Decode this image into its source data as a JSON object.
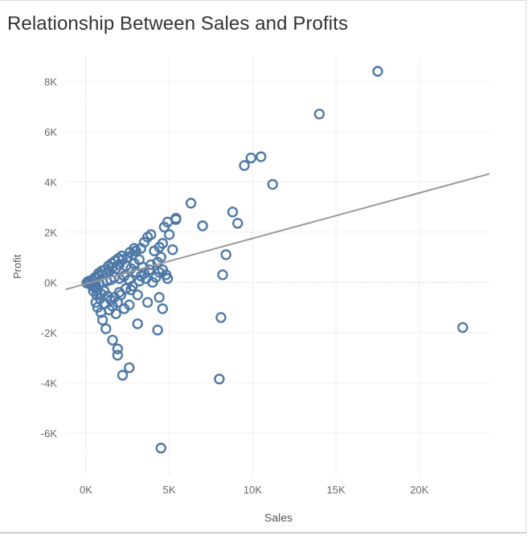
{
  "chart_data": {
    "type": "scatter",
    "title": "Relationship Between Sales and Profits",
    "xlabel": "Sales",
    "ylabel": "Profit",
    "xlim": [
      -1200,
      24200
    ],
    "ylim": [
      -7700,
      9000
    ],
    "x_ticks": [
      {
        "value": 0,
        "label": "0K"
      },
      {
        "value": 5000,
        "label": "5K"
      },
      {
        "value": 10000,
        "label": "10K"
      },
      {
        "value": 15000,
        "label": "15K"
      },
      {
        "value": 20000,
        "label": "20K"
      }
    ],
    "y_ticks": [
      {
        "value": -6000,
        "label": "-6K"
      },
      {
        "value": -4000,
        "label": "-4K"
      },
      {
        "value": -2000,
        "label": "-2K"
      },
      {
        "value": 0,
        "label": "0K"
      },
      {
        "value": 2000,
        "label": "2K"
      },
      {
        "value": 4000,
        "label": "4K"
      },
      {
        "value": 6000,
        "label": "6K"
      },
      {
        "value": 8000,
        "label": "8K"
      }
    ],
    "grid": true,
    "marker": "hollow-circle",
    "point_color": "#4e79a7",
    "trend_color": "#999999",
    "zero_line_color": "#bbbbbb",
    "trend_line": [
      {
        "x": -1200,
        "y": -280
      },
      {
        "x": 24200,
        "y": 4320
      }
    ],
    "points": [
      {
        "x": 17500,
        "y": 8400
      },
      {
        "x": 14000,
        "y": 6700
      },
      {
        "x": 10500,
        "y": 5000
      },
      {
        "x": 9900,
        "y": 4950
      },
      {
        "x": 9500,
        "y": 4650
      },
      {
        "x": 11200,
        "y": 3900
      },
      {
        "x": 22600,
        "y": -1800
      },
      {
        "x": 6300,
        "y": 3150
      },
      {
        "x": 8800,
        "y": 2800
      },
      {
        "x": 9100,
        "y": 2350
      },
      {
        "x": 7000,
        "y": 2250
      },
      {
        "x": 8400,
        "y": 1100
      },
      {
        "x": 8200,
        "y": 300
      },
      {
        "x": 8100,
        "y": -1400
      },
      {
        "x": 8000,
        "y": -3850
      },
      {
        "x": 4500,
        "y": -6600
      },
      {
        "x": 5400,
        "y": 2550
      },
      {
        "x": 5400,
        "y": 2500
      },
      {
        "x": 4900,
        "y": 2400
      },
      {
        "x": 4700,
        "y": 2200
      },
      {
        "x": 5000,
        "y": 1900
      },
      {
        "x": 5200,
        "y": 1300
      },
      {
        "x": 4600,
        "y": 1550
      },
      {
        "x": 4400,
        "y": 1400
      },
      {
        "x": 4100,
        "y": 1250
      },
      {
        "x": 4500,
        "y": 1000
      },
      {
        "x": 4300,
        "y": 800
      },
      {
        "x": 3900,
        "y": 1900
      },
      {
        "x": 3700,
        "y": 1800
      },
      {
        "x": 4800,
        "y": 300
      },
      {
        "x": 4900,
        "y": 150
      },
      {
        "x": 4400,
        "y": 400
      },
      {
        "x": 4200,
        "y": 200
      },
      {
        "x": 4000,
        "y": 0
      },
      {
        "x": 3700,
        "y": -800
      },
      {
        "x": 4600,
        "y": -1050
      },
      {
        "x": 4400,
        "y": -600
      },
      {
        "x": 4300,
        "y": -1900
      },
      {
        "x": 3100,
        "y": -1650
      },
      {
        "x": 2600,
        "y": -3400
      },
      {
        "x": 2200,
        "y": -3700
      },
      {
        "x": 1900,
        "y": -2650
      },
      {
        "x": 1900,
        "y": -2900
      },
      {
        "x": 1600,
        "y": -2300
      },
      {
        "x": 1200,
        "y": -1850
      },
      {
        "x": 1000,
        "y": -1500
      },
      {
        "x": 3100,
        "y": -500
      },
      {
        "x": 2700,
        "y": -300
      },
      {
        "x": 2600,
        "y": -900
      },
      {
        "x": 2300,
        "y": -1050
      },
      {
        "x": 1800,
        "y": -1250
      },
      {
        "x": 1400,
        "y": -1100
      },
      {
        "x": 900,
        "y": -1200
      },
      {
        "x": 700,
        "y": -1000
      },
      {
        "x": 600,
        "y": -800
      },
      {
        "x": 3500,
        "y": 1600
      },
      {
        "x": 3300,
        "y": 1350
      },
      {
        "x": 3000,
        "y": 1250
      },
      {
        "x": 2800,
        "y": 1100
      },
      {
        "x": 2500,
        "y": 1000
      },
      {
        "x": 2200,
        "y": 900
      },
      {
        "x": 3200,
        "y": 900
      },
      {
        "x": 2900,
        "y": 750
      },
      {
        "x": 3400,
        "y": 600
      },
      {
        "x": 3800,
        "y": 500
      },
      {
        "x": 3600,
        "y": 150
      },
      {
        "x": 3300,
        "y": 250
      },
      {
        "x": 3000,
        "y": 400
      },
      {
        "x": 2700,
        "y": 550
      },
      {
        "x": 2400,
        "y": 650
      },
      {
        "x": 2000,
        "y": 700
      },
      {
        "x": 1800,
        "y": 550
      },
      {
        "x": 1600,
        "y": 600
      },
      {
        "x": 1400,
        "y": 450
      },
      {
        "x": 1200,
        "y": 350
      },
      {
        "x": 1000,
        "y": 300
      },
      {
        "x": 800,
        "y": 250
      },
      {
        "x": 600,
        "y": 150
      },
      {
        "x": 400,
        "y": 100
      },
      {
        "x": 200,
        "y": 50
      },
      {
        "x": 100,
        "y": 20
      },
      {
        "x": 50,
        "y": -30
      },
      {
        "x": 300,
        "y": -100
      },
      {
        "x": 500,
        "y": -200
      },
      {
        "x": 700,
        "y": -300
      },
      {
        "x": 900,
        "y": -450
      },
      {
        "x": 1100,
        "y": -350
      },
      {
        "x": 1300,
        "y": -550
      },
      {
        "x": 1500,
        "y": -700
      },
      {
        "x": 1700,
        "y": -600
      },
      {
        "x": 1900,
        "y": -800
      },
      {
        "x": 2100,
        "y": -500
      },
      {
        "x": 2400,
        "y": -250
      },
      {
        "x": 2600,
        "y": 100
      },
      {
        "x": 2300,
        "y": 250
      },
      {
        "x": 2000,
        "y": 150
      },
      {
        "x": 1700,
        "y": 200
      },
      {
        "x": 1500,
        "y": 100
      },
      {
        "x": 1250,
        "y": 50
      },
      {
        "x": 1000,
        "y": 0
      },
      {
        "x": 800,
        "y": -50
      },
      {
        "x": 600,
        "y": -120
      },
      {
        "x": 400,
        "y": -60
      },
      {
        "x": 200,
        "y": -20
      },
      {
        "x": 350,
        "y": 80
      },
      {
        "x": 550,
        "y": 200
      },
      {
        "x": 750,
        "y": 350
      },
      {
        "x": 950,
        "y": 450
      },
      {
        "x": 1150,
        "y": 500
      },
      {
        "x": 1350,
        "y": 650
      },
      {
        "x": 1550,
        "y": 750
      },
      {
        "x": 1750,
        "y": 850
      },
      {
        "x": 1950,
        "y": 950
      },
      {
        "x": 2150,
        "y": 1050
      },
      {
        "x": 2650,
        "y": 1200
      },
      {
        "x": 2900,
        "y": 1350
      },
      {
        "x": 1100,
        "y": -850
      },
      {
        "x": 850,
        "y": -650
      },
      {
        "x": 650,
        "y": -500
      },
      {
        "x": 450,
        "y": -350
      },
      {
        "x": 1600,
        "y": -950
      },
      {
        "x": 2000,
        "y": -400
      },
      {
        "x": 2800,
        "y": -150
      },
      {
        "x": 3200,
        "y": 50
      },
      {
        "x": 3500,
        "y": 350
      },
      {
        "x": 3900,
        "y": 700
      },
      {
        "x": 4600,
        "y": 500
      }
    ]
  }
}
